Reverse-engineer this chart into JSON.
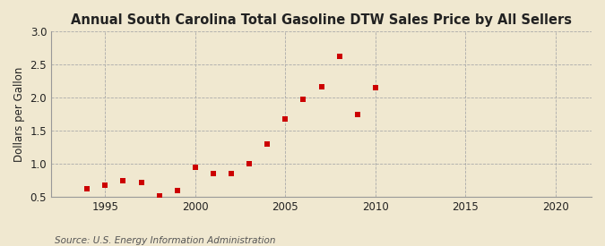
{
  "title": "Annual South Carolina Total Gasoline DTW Sales Price by All Sellers",
  "ylabel": "Dollars per Gallon",
  "source": "Source: U.S. Energy Information Administration",
  "background_color": "#f0e8d0",
  "plot_bg_color": "#f0e8d0",
  "years": [
    1994,
    1995,
    1996,
    1997,
    1998,
    1999,
    2000,
    2001,
    2002,
    2003,
    2004,
    2005,
    2006,
    2007,
    2008,
    2009,
    2010
  ],
  "values": [
    0.62,
    0.68,
    0.74,
    0.72,
    0.51,
    0.6,
    0.95,
    0.86,
    0.86,
    1.0,
    1.3,
    1.68,
    1.97,
    2.17,
    2.62,
    1.75,
    2.15
  ],
  "marker_color": "#cc0000",
  "marker": "s",
  "marker_size": 5,
  "xlim": [
    1992,
    2022
  ],
  "ylim": [
    0.5,
    3.0
  ],
  "xticks": [
    1995,
    2000,
    2005,
    2010,
    2015,
    2020
  ],
  "yticks": [
    0.5,
    1.0,
    1.5,
    2.0,
    2.5,
    3.0
  ],
  "title_fontsize": 10.5,
  "axis_label_fontsize": 8.5,
  "tick_fontsize": 8.5,
  "source_fontsize": 7.5,
  "grid_color": "#aaaaaa",
  "grid_linestyle": "--",
  "grid_linewidth": 0.6,
  "spine_color": "#999999"
}
